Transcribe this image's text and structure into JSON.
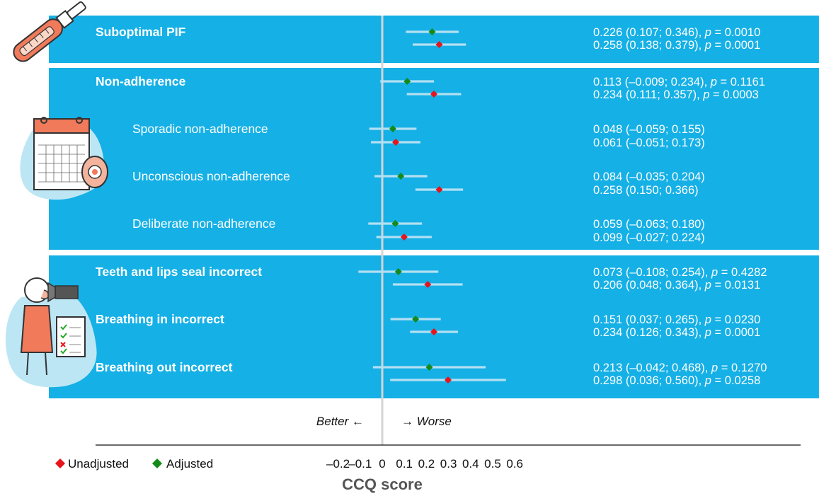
{
  "chart_data": {
    "type": "forest",
    "xlabel": "CCQ score",
    "xticks": [
      "–0.2",
      "–0.1",
      "0",
      "0.1",
      "0.2",
      "0.3",
      "0.4",
      "0.5",
      "0.6"
    ],
    "xtick_values": [
      -0.2,
      -0.1,
      0,
      0.1,
      0.2,
      0.3,
      0.4,
      0.5,
      0.6
    ],
    "direction_left": "Better ←",
    "direction_right": "→ Worse",
    "legend": {
      "unadjusted": "Unadjusted",
      "adjusted": "Adjusted"
    },
    "colors": {
      "panel": "#15b0e6",
      "ci": "#b3e0f2",
      "adjusted": "#138a1a",
      "unadjusted": "#e8131b",
      "zero_line": "#d4d4d4"
    },
    "panels": [
      {
        "rows": [
          {
            "label": "Suboptimal PIF",
            "bold": true,
            "adjusted": {
              "est": 0.226,
              "lo": 0.107,
              "hi": 0.346,
              "text": "0.226 (0.107; 0.346), ",
              "p": "0.0010"
            },
            "unadjusted": {
              "est": 0.258,
              "lo": 0.138,
              "hi": 0.379,
              "text": "0.258 (0.138; 0.379), ",
              "p": "0.0001"
            }
          }
        ]
      },
      {
        "rows": [
          {
            "label": "Non-adherence",
            "bold": true,
            "adjusted": {
              "est": 0.113,
              "lo": -0.009,
              "hi": 0.234,
              "text": "0.113 (–0.009; 0.234), ",
              "p": "0.1161"
            },
            "unadjusted": {
              "est": 0.234,
              "lo": 0.111,
              "hi": 0.357,
              "text": "0.234 (0.111; 0.357), ",
              "p": "0.0003"
            }
          },
          {
            "label": "Sporadic non-adherence",
            "bold": false,
            "adjusted": {
              "est": 0.048,
              "lo": -0.059,
              "hi": 0.155,
              "text": "0.048 (–0.059; 0.155)",
              "p": ""
            },
            "unadjusted": {
              "est": 0.061,
              "lo": -0.051,
              "hi": 0.173,
              "text": "0.061 (–0.051; 0.173)",
              "p": ""
            }
          },
          {
            "label": "Unconscious non-adherence",
            "bold": false,
            "adjusted": {
              "est": 0.084,
              "lo": -0.035,
              "hi": 0.204,
              "text": "0.084 (–0.035; 0.204)",
              "p": ""
            },
            "unadjusted": {
              "est": 0.258,
              "lo": 0.15,
              "hi": 0.366,
              "text": "0.258 (0.150; 0.366)",
              "p": ""
            }
          },
          {
            "label": "Deliberate non-adherence",
            "bold": false,
            "adjusted": {
              "est": 0.059,
              "lo": -0.063,
              "hi": 0.18,
              "text": "0.059 (–0.063; 0.180)",
              "p": ""
            },
            "unadjusted": {
              "est": 0.099,
              "lo": -0.027,
              "hi": 0.224,
              "text": "0.099 (–0.027; 0.224)",
              "p": ""
            }
          }
        ]
      },
      {
        "rows": [
          {
            "label": "Teeth and lips seal incorrect",
            "bold": true,
            "adjusted": {
              "est": 0.073,
              "lo": -0.108,
              "hi": 0.254,
              "text": "0.073 (–0.108; 0.254), ",
              "p": "0.4282"
            },
            "unadjusted": {
              "est": 0.206,
              "lo": 0.048,
              "hi": 0.364,
              "text": "0.206 (0.048; 0.364), ",
              "p": "0.0131"
            }
          },
          {
            "label": "Breathing in incorrect",
            "bold": true,
            "adjusted": {
              "est": 0.151,
              "lo": 0.037,
              "hi": 0.265,
              "text": "0.151 (0.037; 0.265), ",
              "p": "0.0230"
            },
            "unadjusted": {
              "est": 0.234,
              "lo": 0.126,
              "hi": 0.343,
              "text": "0.234 (0.126; 0.343), ",
              "p": "0.0001"
            }
          },
          {
            "label": "Breathing out incorrect",
            "bold": true,
            "adjusted": {
              "est": 0.213,
              "lo": -0.042,
              "hi": 0.468,
              "text": "0.213 (–0.042; 0.468), ",
              "p": "0.1270"
            },
            "unadjusted": {
              "est": 0.298,
              "lo": 0.036,
              "hi": 0.56,
              "text": "0.298 (0.036; 0.560), ",
              "p": "0.0258"
            }
          }
        ]
      }
    ]
  }
}
